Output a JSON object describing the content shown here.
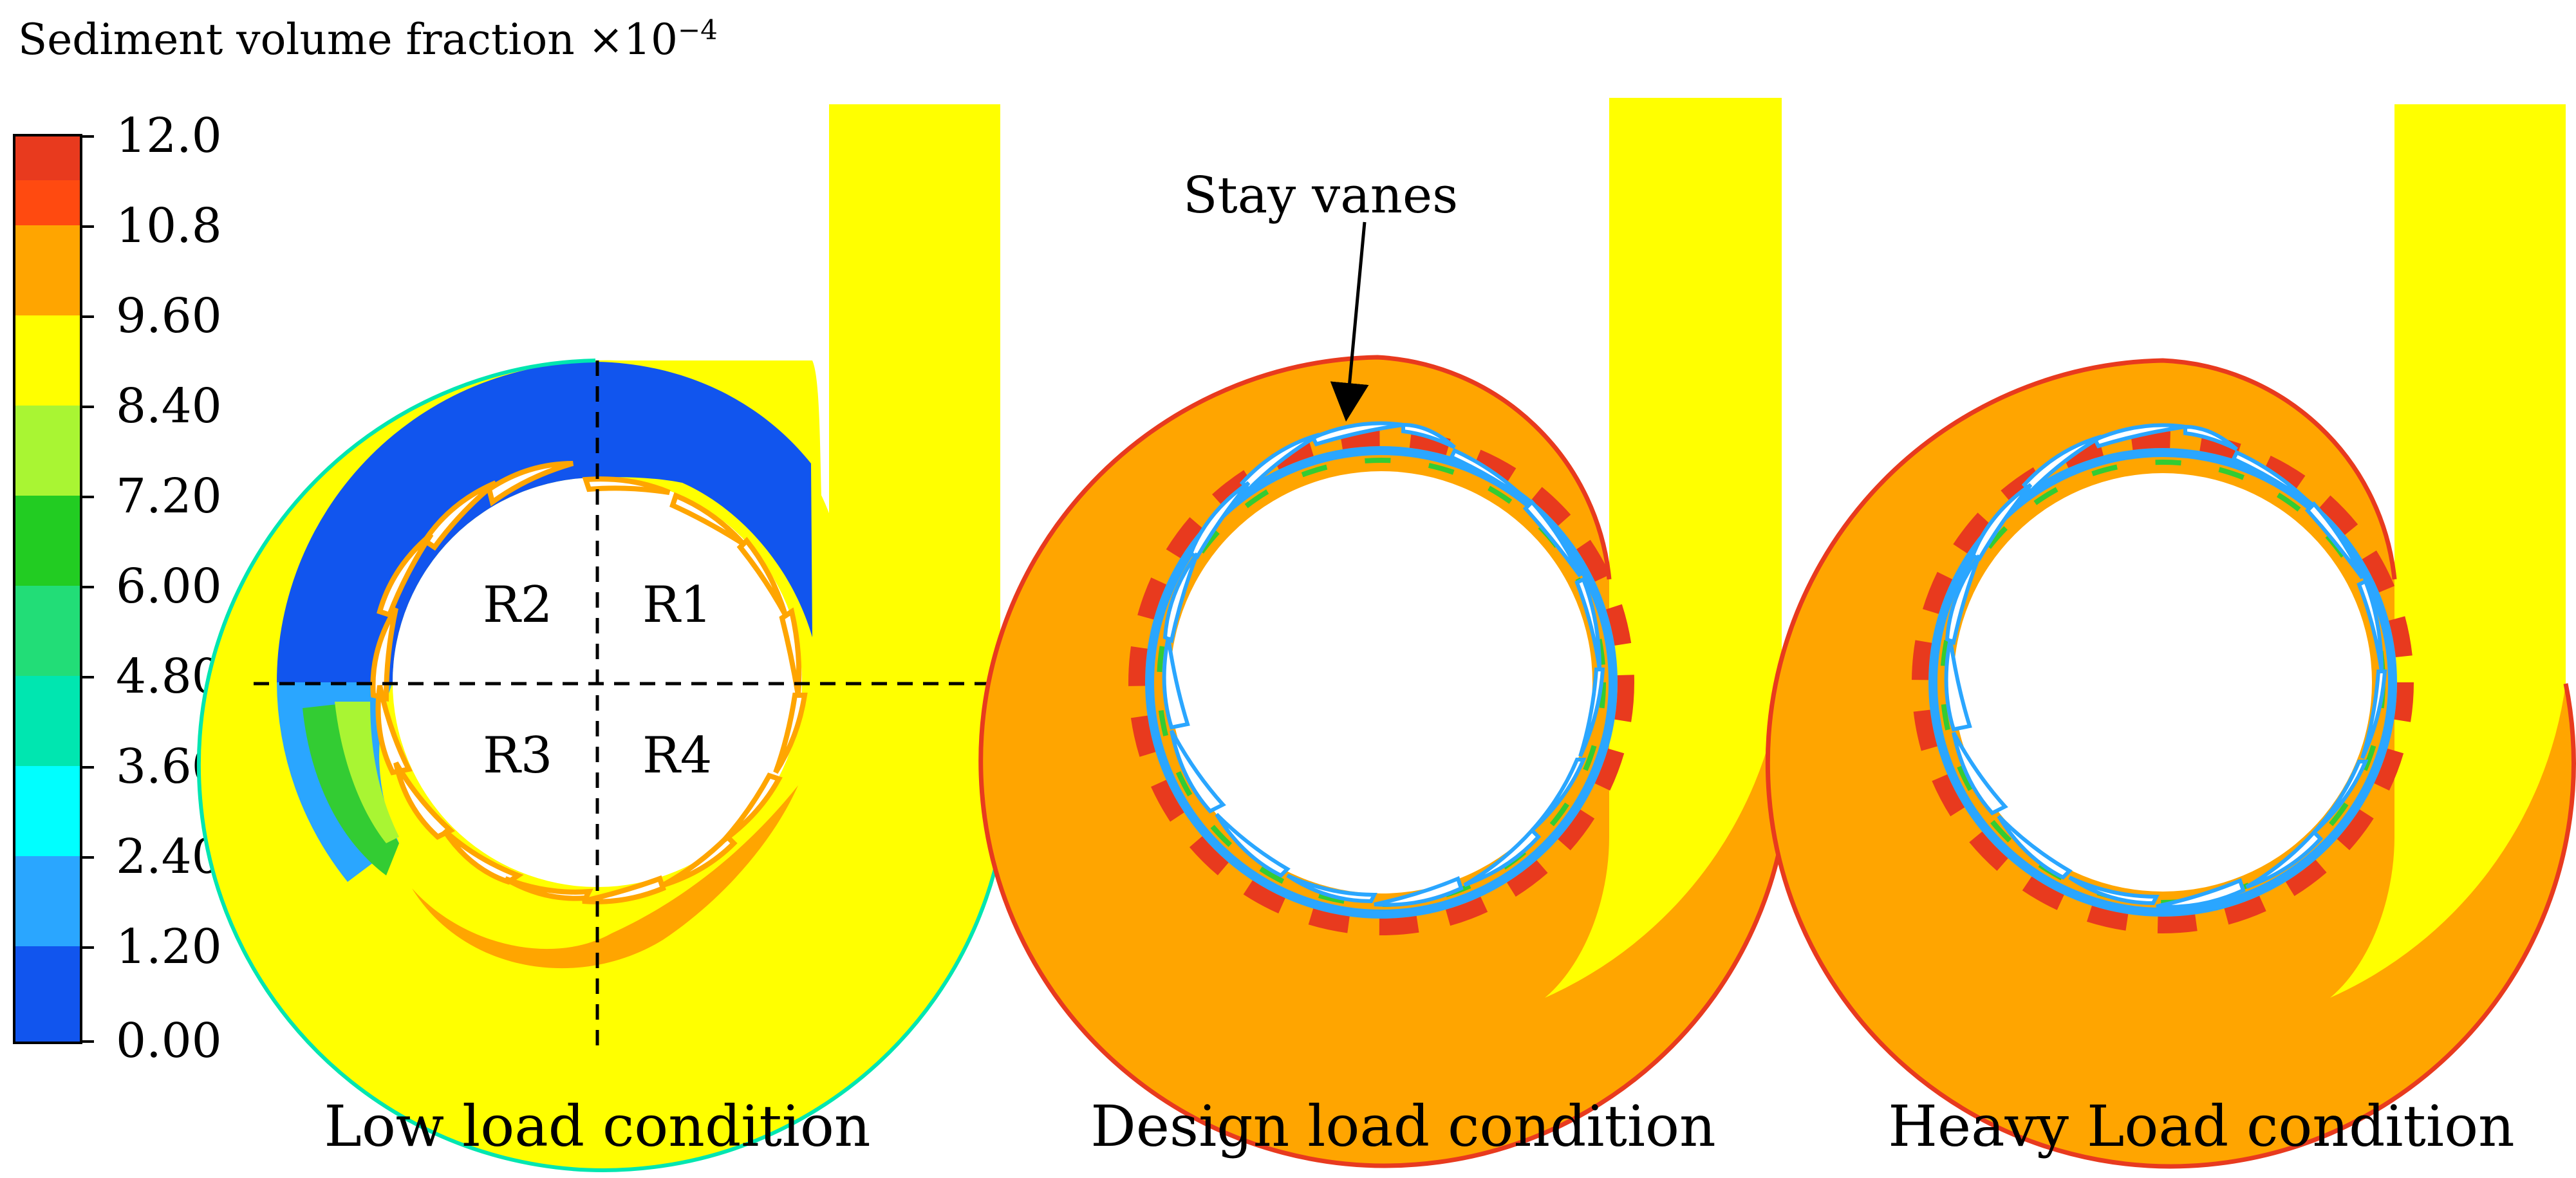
{
  "legend": {
    "title": "Sediment volume fraction ×10",
    "exponent": "−4",
    "ticks": [
      "12.0",
      "10.8",
      "9.60",
      "8.40",
      "7.20",
      "6.00",
      "4.80",
      "3.60",
      "2.40",
      "1.20",
      "0.00"
    ],
    "colors": [
      "#e83a1e",
      "#ff5a00",
      "#ffa500",
      "#ffff00",
      "#a9f533",
      "#33cc33",
      "#22dd77",
      "#00e6b0",
      "#00ffff",
      "#2aa6ff",
      "#1155ee"
    ]
  },
  "panels": [
    {
      "label": "Low load condition",
      "regions": [
        "R1",
        "R2",
        "R3",
        "R4"
      ]
    },
    {
      "label": "Design load condition"
    },
    {
      "label": "Heavy Load condition"
    }
  ],
  "annotation": {
    "label": "Stay vanes"
  }
}
